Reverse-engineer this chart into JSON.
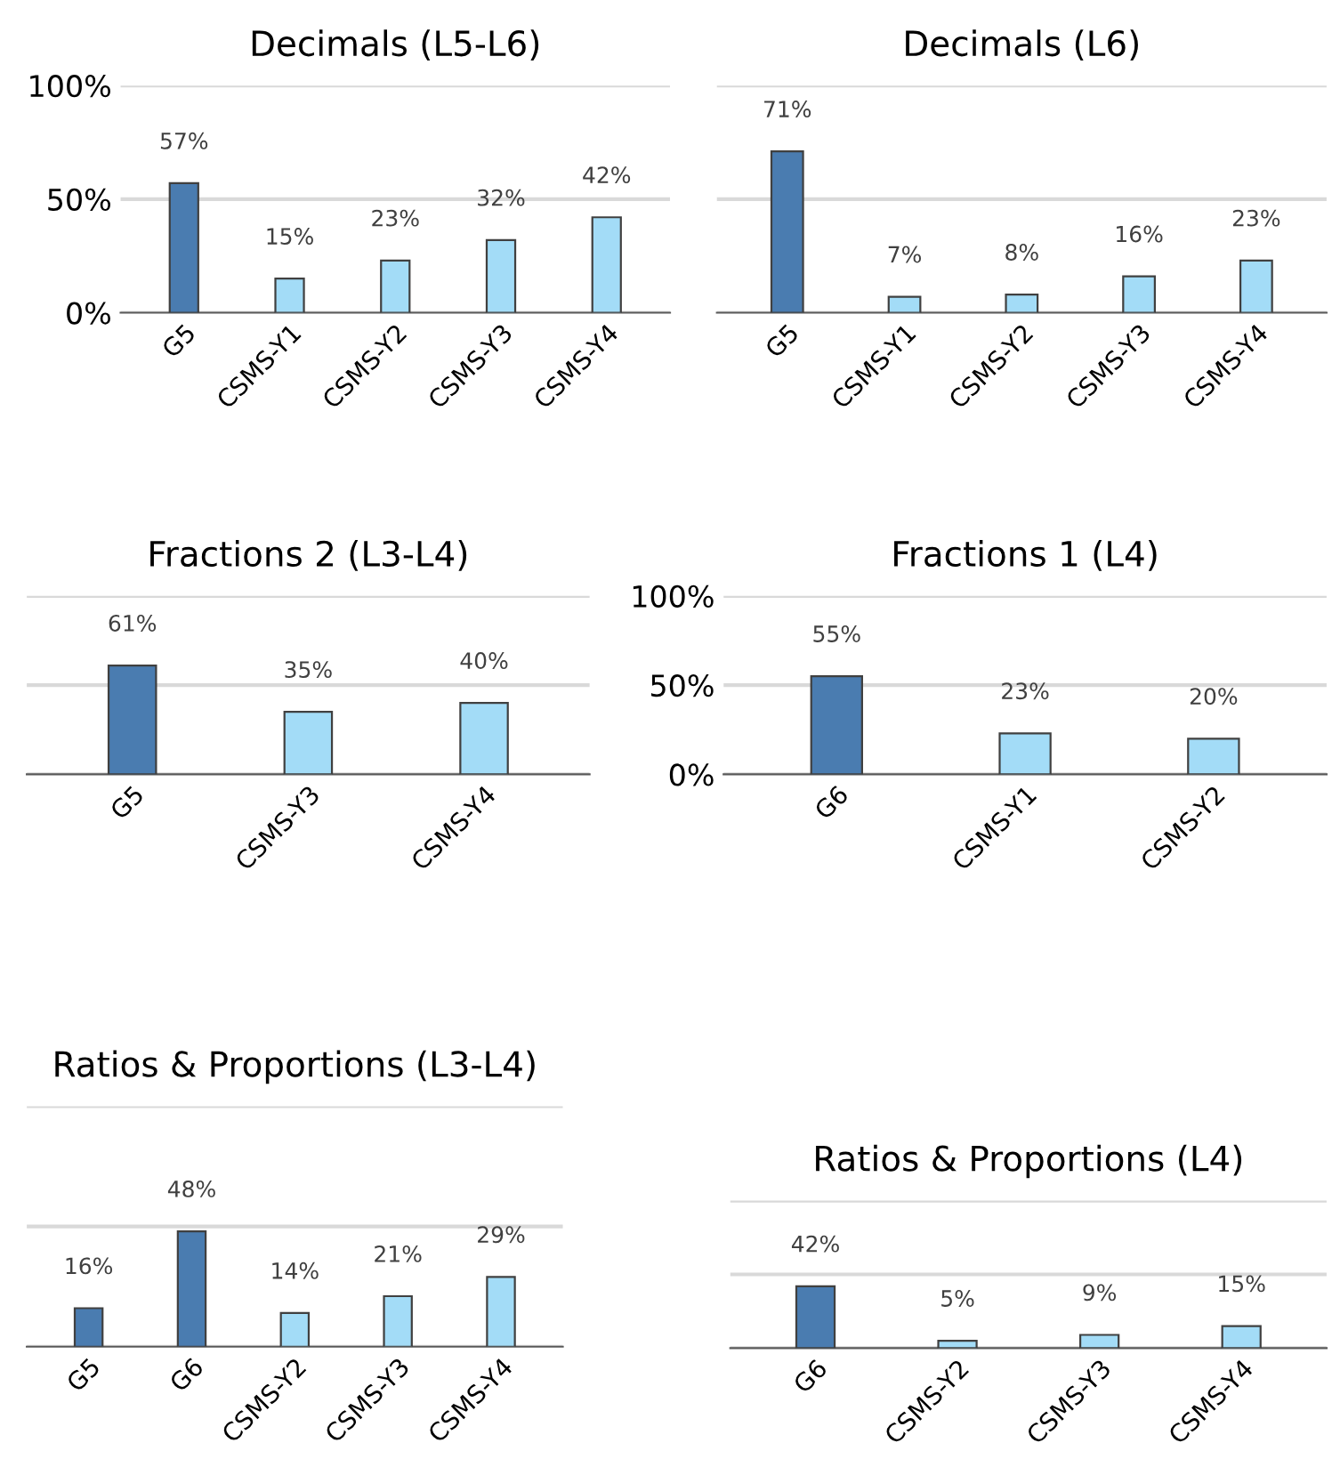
{
  "chart_data": [
    {
      "type": "bar",
      "title": "Decimals (L5-L6)",
      "categories": [
        "G5",
        "CSMS-Y1",
        "CSMS-Y2",
        "CSMS-Y3",
        "CSMS-Y4"
      ],
      "values": [
        57,
        15,
        23,
        32,
        42
      ],
      "colors": [
        "#4a7cb0",
        "#a3dcf7",
        "#a3dcf7",
        "#a3dcf7",
        "#a3dcf7"
      ],
      "value_labels": [
        "57%",
        "15%",
        "23%",
        "32%",
        "42%"
      ],
      "ylim": [
        0,
        100
      ],
      "yticks": [
        {
          "value": 0,
          "label": "0%"
        },
        {
          "value": 50,
          "label": "50%"
        },
        {
          "value": 100,
          "label": "100%"
        }
      ],
      "grid": "y"
    },
    {
      "type": "bar",
      "title": "Decimals (L6)",
      "categories": [
        "G5",
        "CSMS-Y1",
        "CSMS-Y2",
        "CSMS-Y3",
        "CSMS-Y4"
      ],
      "values": [
        71,
        7,
        8,
        16,
        23
      ],
      "colors": [
        "#4a7cb0",
        "#a3dcf7",
        "#a3dcf7",
        "#a3dcf7",
        "#a3dcf7"
      ],
      "value_labels": [
        "71%",
        "7%",
        "8%",
        "16%",
        "23%"
      ],
      "ylim": [
        0,
        100
      ],
      "yticks": [
        {
          "value": 0,
          "label": null
        },
        {
          "value": 50,
          "label": null
        },
        {
          "value": 100,
          "label": null
        }
      ],
      "grid": "y",
      "tick_labels": "x"
    },
    {
      "type": "bar",
      "title": "Fractions 2 (L3-L4)",
      "categories": [
        "G5",
        "CSMS-Y3",
        "CSMS-Y4"
      ],
      "values": [
        61,
        35,
        40
      ],
      "colors": [
        "#4a7cb0",
        "#a3dcf7",
        "#a3dcf7"
      ],
      "value_labels": [
        "61%",
        "35%",
        "40%"
      ],
      "ylim": [
        0,
        100
      ],
      "yticks": [
        {
          "value": 0,
          "label": null
        },
        {
          "value": 50,
          "label": null
        },
        {
          "value": 100,
          "label": null
        }
      ],
      "grid": "y",
      "tick_labels": "x"
    },
    {
      "type": "bar",
      "title": "Fractions 1 (L4)",
      "categories": [
        "G6",
        "CSMS-Y1",
        "CSMS-Y2"
      ],
      "values": [
        55,
        23,
        20
      ],
      "colors": [
        "#4a7cb0",
        "#a3dcf7",
        "#a3dcf7"
      ],
      "value_labels": [
        "55%",
        "23%",
        "20%"
      ],
      "ylim": [
        0,
        100
      ],
      "yticks": [
        {
          "value": 0,
          "label": "0%"
        },
        {
          "value": 50,
          "label": "50%"
        },
        {
          "value": 100,
          "label": "100%"
        }
      ],
      "grid": "y"
    },
    {
      "type": "bar",
      "title": "Ratios & Proportions (L3-L4)",
      "categories": [
        "G5",
        "G6",
        "CSMS-Y2",
        "CSMS-Y3",
        "CSMS-Y4"
      ],
      "values": [
        16,
        48,
        14,
        21,
        29
      ],
      "colors": [
        "#4a7cb0",
        "#4a7cb0",
        "#a3dcf7",
        "#a3dcf7",
        "#a3dcf7"
      ],
      "value_labels": [
        "16%",
        "48%",
        "14%",
        "21%",
        "29%"
      ],
      "ylim": [
        0,
        100
      ],
      "yticks": [
        {
          "value": 0,
          "label": null
        },
        {
          "value": 50,
          "label": null
        },
        {
          "value": 100,
          "label": null
        }
      ],
      "grid": "y",
      "tick_labels": "x"
    },
    {
      "type": "bar",
      "title": "Ratios & Proportions (L4)",
      "categories": [
        "G6",
        "CSMS-Y2",
        "CSMS-Y3",
        "CSMS-Y4"
      ],
      "values": [
        42,
        5,
        9,
        15
      ],
      "colors": [
        "#4a7cb0",
        "#a3dcf7",
        "#a3dcf7",
        "#a3dcf7"
      ],
      "value_labels": [
        "42%",
        "5%",
        "9%",
        "15%"
      ],
      "ylim": [
        0,
        100
      ],
      "yticks": [
        {
          "value": 0,
          "label": null
        },
        {
          "value": 50,
          "label": null
        },
        {
          "value": 100,
          "label": null
        }
      ],
      "grid": "y",
      "tick_labels": "x"
    }
  ]
}
